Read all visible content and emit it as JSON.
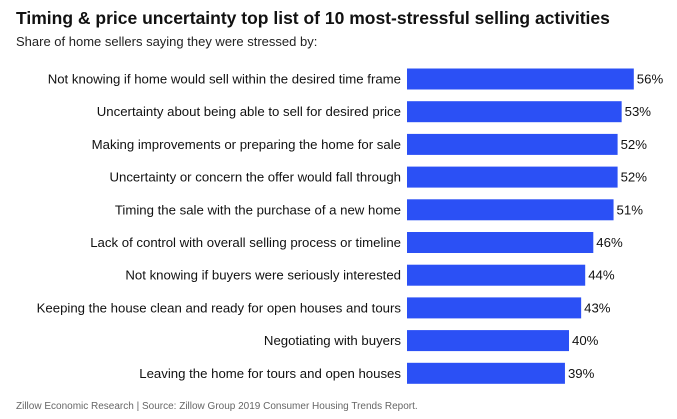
{
  "chart_data": {
    "type": "bar",
    "orientation": "horizontal",
    "title": "Timing & price uncertainty top list of 10 most-stressful selling activities",
    "subtitle": "Share of home sellers saying they were stressed by:",
    "categories": [
      "Not knowing if home would sell within the desired time frame",
      "Uncertainty about being able to sell for desired price",
      "Making improvements or preparing the home for sale",
      "Uncertainty or concern the offer would fall through",
      "Timing the sale with the purchase of a new home",
      "Lack of control with overall selling process or timeline",
      "Not knowing if buyers were seriously interested",
      "Keeping the house clean and ready for open houses and tours",
      "Negotiating with buyers",
      "Leaving the home for tours and open houses"
    ],
    "values": [
      56,
      53,
      52,
      52,
      51,
      46,
      44,
      43,
      40,
      39
    ],
    "value_labels": [
      "56%",
      "53%",
      "52%",
      "52%",
      "51%",
      "46%",
      "44%",
      "43%",
      "40%",
      "39%"
    ],
    "unit": "%",
    "grid": false,
    "legend": "none",
    "bar_color": "#2b50f5",
    "source": "Zillow Economic Research | Source: Zillow Group 2019 Consumer Housing Trends Report."
  }
}
